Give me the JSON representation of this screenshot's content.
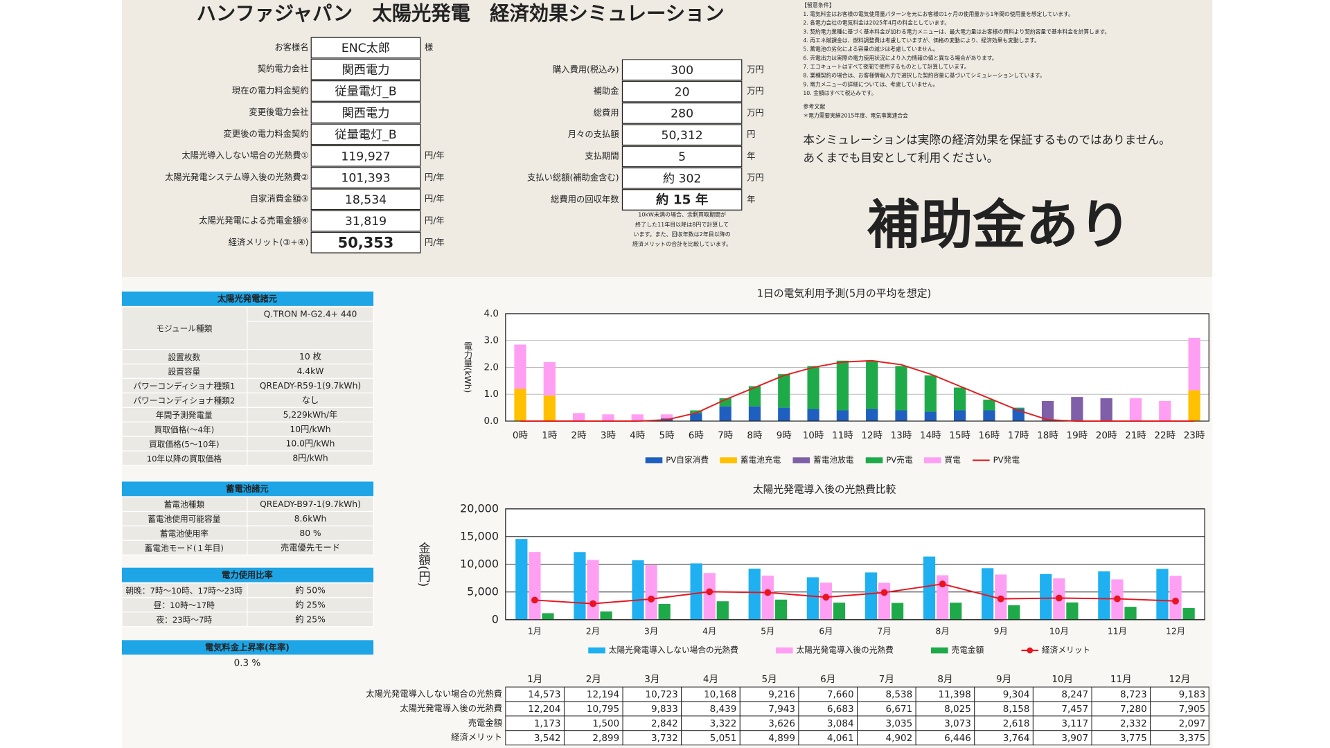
{
  "header": {
    "title": "ハンファジャパン　太陽光発電　経済効果シミュレーション"
  },
  "customer_form": [
    {
      "label": "お客様名",
      "value": "ENC太郎",
      "unit": "様"
    },
    {
      "label": "契約電力会社",
      "value": "関西電力"
    },
    {
      "label": "現在の電力料金契約",
      "value": "従量電灯_B"
    },
    {
      "label": "変更後電力会社",
      "value": "関西電力"
    },
    {
      "label": "変更後の電力料金契約",
      "value": "従量電灯_B"
    },
    {
      "label": "太陽光導入しない場合の光熱費①",
      "value": "119,927",
      "unit": "円/年"
    },
    {
      "label": "太陽光発電システム導入後の光熱費②",
      "value": "101,393",
      "unit": "円/年"
    },
    {
      "label": "自家消費金額③",
      "value": "18,534",
      "unit": "円/年"
    },
    {
      "label": "太陽光発電による売電金額④",
      "value": "31,819",
      "unit": "円/年"
    },
    {
      "label": "経済メリット(③+④)",
      "value": "50,353",
      "unit": "円/年",
      "color": "#e8141e"
    }
  ],
  "cost_form": {
    "rows": [
      {
        "label": "購入費用(税込み)",
        "value": "300",
        "unit": "万円"
      },
      {
        "label": "補助金",
        "value": "20",
        "unit": "万円"
      },
      {
        "label": "総費用",
        "value": "280",
        "unit": "万円"
      },
      {
        "label": "月々の支払額",
        "value": "50,312",
        "unit": "円"
      },
      {
        "label": "支払期間",
        "value": "5",
        "unit": "年"
      },
      {
        "label": "支払い総額(補助金含む)",
        "value": "約 302",
        "unit": "万円"
      },
      {
        "label": "総費用の回収年数",
        "value": "約 15 年",
        "unit": "年",
        "color": "#e8141e"
      }
    ],
    "note": [
      "10kW未満の場合、余剰買取期間が",
      "終了した11年目以降は8円で計算して",
      "います。また、回収年数は2年目以降の",
      "経済メリットの合計を比較しています。"
    ]
  },
  "conditions": {
    "heading": "【留意条件】",
    "items": [
      "1. 電気料金はお客様の電気使用量パターンを元にお客様の1ヶ月の使用量から1年間の使用量を想定しています。",
      "2. 各電力会社の電気料金は2025年4月の料金としています。",
      "3. 契約電力業種に基づく基本料金が加わる電力メニューは、最大電力量はお客様の資料より契約容量で基本料金を計算します。",
      "4. 再エネ賦課金は、燃料調整費は考慮していますが、価格の変動により、経済効果も変動します。",
      "5. 蓄電池の劣化による容量の減少は考慮していません。",
      "6. 売電出力は実際の電力使用状況により入力情報の値と異なる場合があります。",
      "7. エコキュートはすべて夜間で使用するものとして計算しています。",
      "8. 業種契約の場合は、お客様情報入力で選択した契約容量に基づいてシミュレーションしています。",
      "9. 電力メニューの詳細については、考慮していません。",
      "10. 金額はすべて税込みです。"
    ],
    "reference_heading": "参考文献",
    "reference": "＊電力需要実績2015年度、電気事業連合会",
    "disclaimer": [
      "本シミュレーションは実際の経済効果を保証するものではありません。",
      "あくまでも目安として利用ください。"
    ]
  },
  "badge": "補助金あり",
  "specs": [
    {
      "heading": "太陽光発電諸元",
      "rows": [
        [
          "モジュール種類",
          "Q.TRON M-G2.4+ 440"
        ],
        [
          "設置枚数",
          "10 枚"
        ],
        [
          "設置容量",
          "4.4kW"
        ],
        [
          "パワーコンディショナ種類1",
          "QREADY-R59-1(9.7kWh)"
        ],
        [
          "パワーコンディショナ種類2",
          "なし"
        ],
        [
          "年間予測発電量",
          "5,229kWh/年"
        ],
        [
          "買取価格(～4年)",
          "10円/kWh"
        ],
        [
          "買取価格(5～10年)",
          "10.0円/kWh"
        ],
        [
          "10年以降の買取価格",
          "8円/kWh"
        ]
      ]
    },
    {
      "heading": "蓄電池諸元",
      "rows": [
        [
          "蓄電池種類",
          "QREADY-B97-1(9.7kWh)"
        ],
        [
          "蓄電池使用可能容量",
          "8.6kWh"
        ],
        [
          "蓄電池使用率",
          "80 %"
        ],
        [
          "蓄電池モード(１年目)",
          "売電優先モード"
        ]
      ]
    },
    {
      "heading": "電力使用比率",
      "rows": [
        [
          "朝晩：7時～10時、17時～23時",
          "約 50%"
        ],
        [
          "昼：10時～17時",
          "約 25%"
        ],
        [
          "夜：23時～7時",
          "約 25%"
        ]
      ]
    },
    {
      "heading": "電気料金上昇率(年率)",
      "value": "0.3 %"
    }
  ],
  "chart_data": [
    {
      "type": "stacked_bar",
      "title": "1日の電気利用予測(5月の平均を想定)",
      "y_label": "電力量(kWh)",
      "categories": [
        "0時",
        "1時",
        "2時",
        "3時",
        "4時",
        "5時",
        "6時",
        "7時",
        "8時",
        "9時",
        "10時",
        "11時",
        "12時",
        "13時",
        "14時",
        "15時",
        "16時",
        "17時",
        "18時",
        "19時",
        "20時",
        "21時",
        "22時",
        "23時"
      ],
      "ylim": [
        0,
        4
      ],
      "yticks": [
        {
          "value": 0,
          "label": "0.0"
        },
        {
          "value": 1,
          "label": "1.0"
        },
        {
          "value": 2,
          "label": "2.0"
        },
        {
          "value": 3,
          "label": "3.0"
        },
        {
          "value": 4,
          "label": "4.0"
        }
      ],
      "grid": true,
      "series": [
        {
          "name": "PV自家消費",
          "color": "#1f5fbf",
          "values": [
            0,
            0,
            0,
            0,
            0,
            0.1,
            0.3,
            0.55,
            0.55,
            0.5,
            0.45,
            0.4,
            0.45,
            0.4,
            0.35,
            0.4,
            0.4,
            0.45,
            0,
            0,
            0,
            0,
            0,
            0
          ]
        },
        {
          "name": "蓄電池充電",
          "color": "#ffc000",
          "values": [
            1.2,
            0.95,
            0,
            0,
            0,
            0,
            0,
            0,
            0,
            0,
            0,
            0,
            0,
            0,
            0,
            0,
            0,
            0,
            0,
            0,
            0,
            0,
            0,
            1.15
          ]
        },
        {
          "name": "蓄電池放電",
          "color": "#7f5fa8",
          "values": [
            0,
            0,
            0,
            0,
            0,
            0,
            0,
            0,
            0,
            0,
            0,
            0,
            0,
            0,
            0,
            0,
            0,
            0,
            0.75,
            0.9,
            0.85,
            0,
            0,
            0
          ]
        },
        {
          "name": "PV売電",
          "color": "#1faa4a",
          "values": [
            0,
            0,
            0,
            0,
            0,
            0,
            0.1,
            0.3,
            0.75,
            1.25,
            1.6,
            1.85,
            1.8,
            1.65,
            1.35,
            0.85,
            0.4,
            0.05,
            0,
            0,
            0,
            0,
            0,
            0
          ]
        },
        {
          "name": "買電",
          "color": "#ff9ff3",
          "values": [
            1.65,
            1.25,
            0.3,
            0.25,
            0.25,
            0.15,
            0,
            0,
            0,
            0,
            0,
            0,
            0,
            0,
            0,
            0,
            0,
            0,
            0,
            0,
            0,
            0.85,
            0.75,
            1.95
          ]
        },
        {
          "name": "PV発電",
          "color": "#e02020",
          "type": "line",
          "values": [
            0,
            0,
            0,
            0,
            0,
            0.05,
            0.3,
            0.8,
            1.25,
            1.7,
            2.0,
            2.2,
            2.25,
            2.1,
            1.75,
            1.3,
            0.85,
            0.4,
            0.05,
            0,
            0,
            0,
            0,
            0
          ]
        }
      ]
    },
    {
      "type": "bar",
      "title": "太陽光発電導入後の光熱費比較",
      "y_label": "金額(円)",
      "categories": [
        "1月",
        "2月",
        "3月",
        "4月",
        "5月",
        "6月",
        "7月",
        "8月",
        "9月",
        "10月",
        "11月",
        "12月"
      ],
      "ylim": [
        0,
        20000
      ],
      "yticks": [
        0,
        {
          "value": 5000,
          "label": "5,000"
        },
        {
          "value": 10000,
          "label": "10,000"
        },
        {
          "value": 15000,
          "label": "15,000"
        },
        {
          "value": 20000,
          "label": "20,000"
        }
      ],
      "grid": true,
      "series": [
        {
          "name": "太陽光発電導入しない場合の光熱費",
          "color": "#1eb0f0",
          "values": [
            14573,
            12194,
            10723,
            10168,
            9216,
            7660,
            8538,
            11398,
            9304,
            8247,
            8723,
            9183
          ],
          "value_labels": [
            "14,573",
            "12,194",
            "10,723",
            "10,168",
            "9,216",
            "7,660",
            "8,538",
            "11,398",
            "9,304",
            "8,247",
            "8,723",
            "9,183"
          ]
        },
        {
          "name": "太陽光発電導入後の光熱費",
          "color": "#ff9ff3",
          "values": [
            12204,
            10795,
            9833,
            8439,
            7943,
            6683,
            6671,
            8025,
            8158,
            7457,
            7280,
            7905
          ],
          "value_labels": [
            "12,204",
            "10,795",
            "9,833",
            "8,439",
            "7,943",
            "6,683",
            "6,671",
            "8,025",
            "8,158",
            "7,457",
            "7,280",
            "7,905"
          ]
        },
        {
          "name": "売電金額",
          "color": "#1faa4a",
          "values": [
            1173,
            1500,
            2842,
            3322,
            3626,
            3084,
            3035,
            3073,
            2618,
            3117,
            2332,
            2097
          ],
          "value_labels": [
            "1,173",
            "1,500",
            "2,842",
            "3,322",
            "3,626",
            "3,084",
            "3,035",
            "3,073",
            "2,618",
            "3,117",
            "2,332",
            "2,097"
          ]
        },
        {
          "name": "経済メリット",
          "color": "#e8141e",
          "type": "line",
          "values": [
            3542,
            2899,
            3732,
            5051,
            4899,
            4061,
            4902,
            6446,
            3764,
            3907,
            3775,
            3375
          ],
          "value_labels": [
            "3,542",
            "2,899",
            "3,732",
            "5,051",
            "4,899",
            "4,061",
            "4,902",
            "6,446",
            "3,764",
            "3,907",
            "3,775",
            "3,375"
          ]
        }
      ]
    }
  ]
}
